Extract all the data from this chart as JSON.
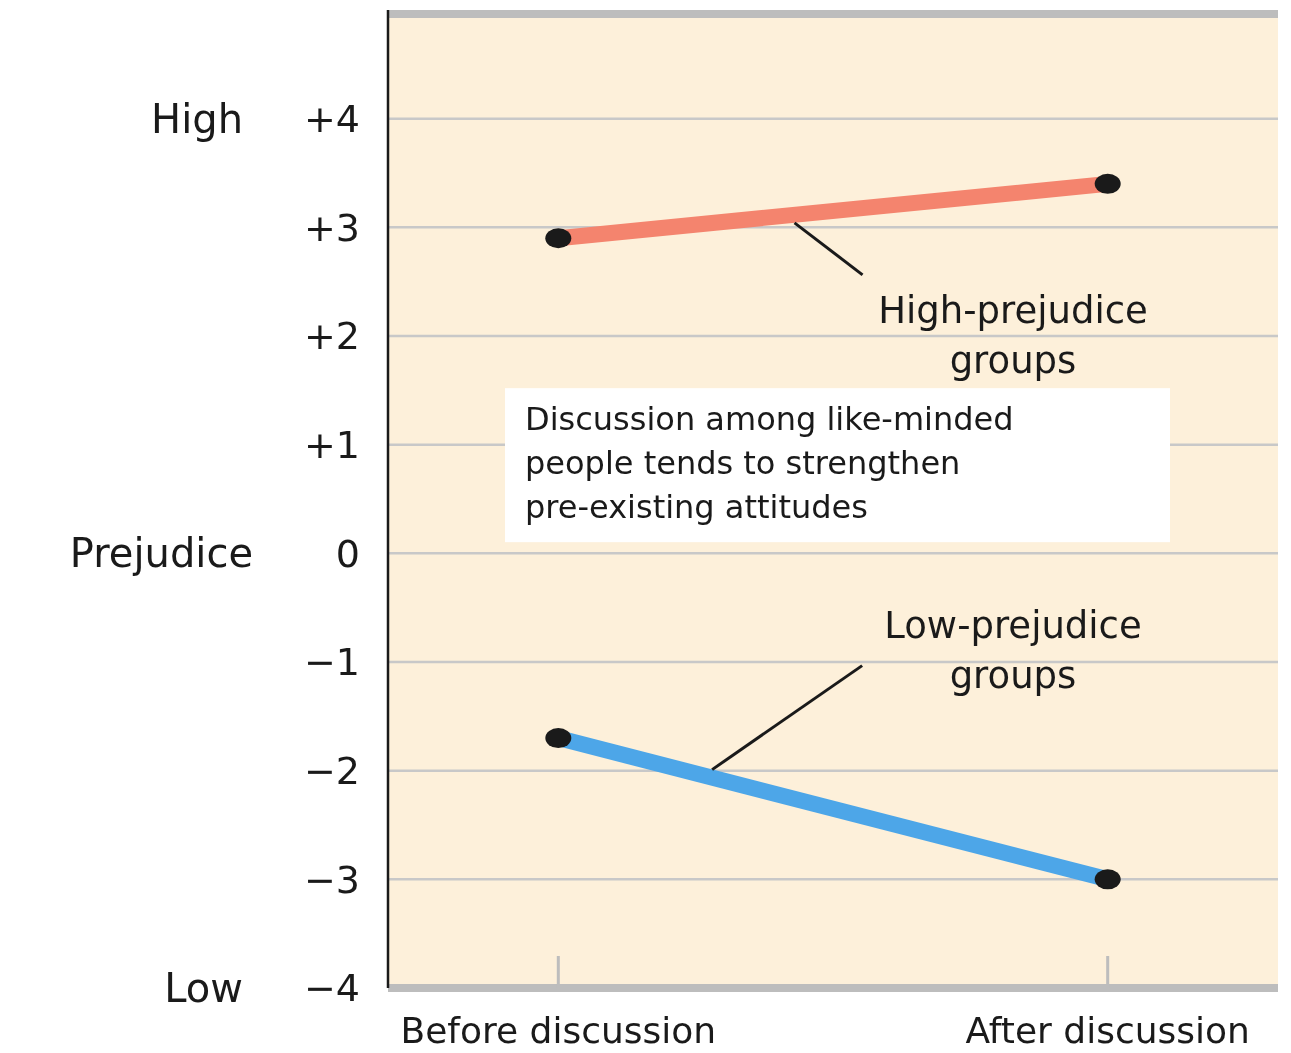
{
  "chart_data": {
    "type": "line",
    "ylabel": "Prejudice",
    "categories": [
      "Before discussion",
      "After discussion"
    ],
    "series": [
      {
        "name": "High-prejudice groups",
        "color": "#f4846e",
        "values": [
          2.9,
          3.4
        ]
      },
      {
        "name": "Low-prejudice groups",
        "color": "#4da6e8",
        "values": [
          -1.7,
          -3.0
        ]
      }
    ],
    "ylim": [
      -4,
      5
    ],
    "yticks": [
      {
        "value": -4,
        "label": "−4"
      },
      {
        "value": -3,
        "label": "−3"
      },
      {
        "value": -2,
        "label": "−2"
      },
      {
        "value": -1,
        "label": "−1"
      },
      0,
      {
        "value": 1,
        "label": "+1"
      },
      {
        "value": 2,
        "label": "+2"
      },
      {
        "value": 3,
        "label": "+3"
      },
      {
        "value": 4,
        "label": "+4"
      }
    ],
    "grid": "y",
    "marker": "circle",
    "annotations": [
      "High",
      "Low",
      "Discussion among like-minded people tends to strengthen pre-existing attitudes"
    ]
  }
}
